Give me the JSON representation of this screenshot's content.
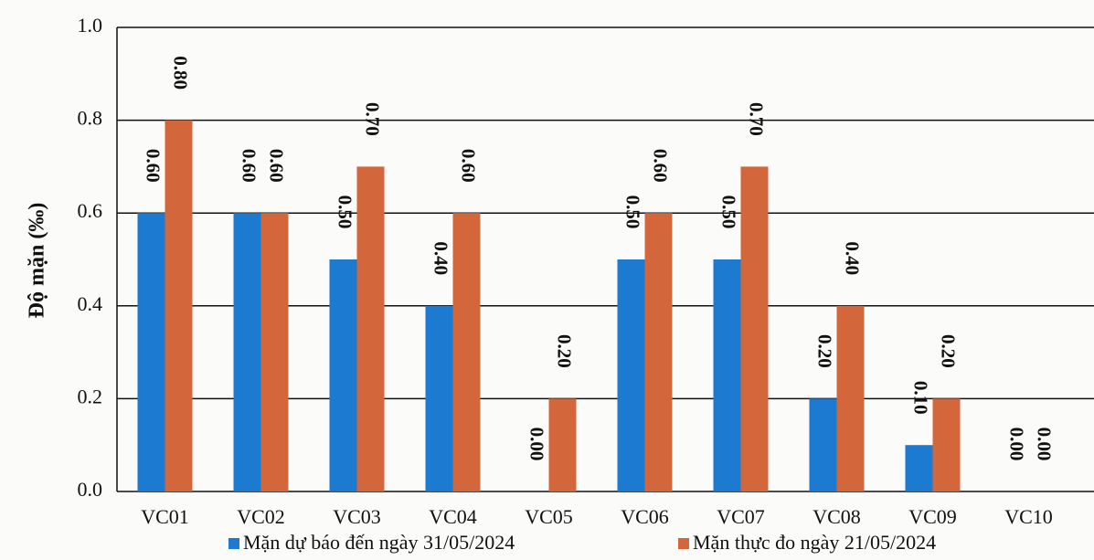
{
  "chart_data": {
    "type": "bar",
    "y_label": "Độ mặn (‰)",
    "categories": [
      "VC01",
      "VC02",
      "VC03",
      "VC04",
      "VC05",
      "VC06",
      "VC07",
      "VC08",
      "VC09",
      "VC10"
    ],
    "series": [
      {
        "name": "Mặn dự báo đến ngày 31/05/2024",
        "color": "#1c7ad0",
        "values": [
          0.6,
          0.6,
          0.5,
          0.4,
          0,
          0.5,
          0.5,
          0.2,
          0.1,
          0
        ],
        "value_labels": [
          "0.60",
          "0.60",
          "0.50",
          "0.40",
          "0.00",
          "0.50",
          "0.50",
          "0.20",
          "0.10",
          "0.00"
        ]
      },
      {
        "name": "Mặn thực đo ngày 21/05/2024",
        "color": "#d4663c",
        "values": [
          0.8,
          0.6,
          0.7,
          0.6,
          0.2,
          0.6,
          0.7,
          0.4,
          0.2,
          0
        ],
        "value_labels": [
          "0.80",
          "0.60",
          "0.70",
          "0.60",
          "0.20",
          "0.60",
          "0.70",
          "0.40",
          "0.20",
          "0.00"
        ]
      }
    ],
    "ylim": [
      0,
      1
    ],
    "yticks": [
      {
        "value": 0,
        "label": "0.0"
      },
      {
        "value": 0.2,
        "label": "0.2"
      },
      {
        "value": 0.4,
        "label": "0.4"
      },
      {
        "value": 0.6,
        "label": "0.6"
      },
      {
        "value": 0.8,
        "label": "0.8"
      },
      {
        "value": 1,
        "label": "1.0"
      }
    ],
    "grid": true
  }
}
